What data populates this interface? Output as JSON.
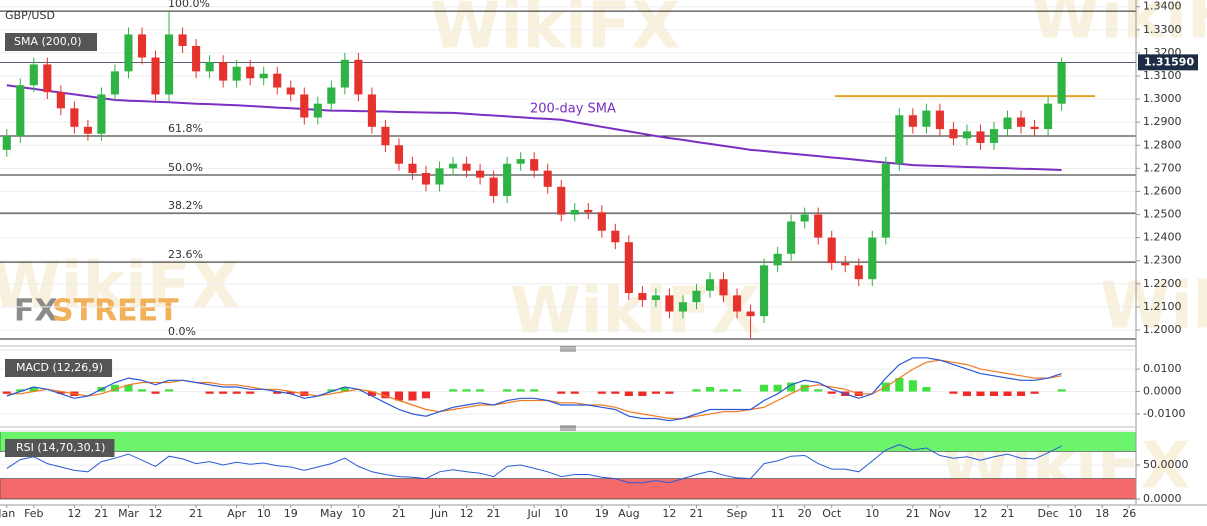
{
  "chart_data": [
    {
      "type": "candlestick",
      "title": "GBP/USD",
      "watermark": "WikiFX",
      "logo": [
        "FX",
        "STREET"
      ],
      "categories": [
        "Jan",
        null,
        "Feb",
        null,
        null,
        "12",
        null,
        "21",
        null,
        "Mar",
        null,
        "12",
        null,
        null,
        "21",
        null,
        null,
        "Apr",
        null,
        "10",
        null,
        "19",
        null,
        null,
        "May",
        null,
        "10",
        null,
        null,
        "21",
        null,
        null,
        "Jun",
        null,
        "12",
        null,
        "21",
        null,
        null,
        "Jul",
        null,
        "10",
        null,
        null,
        "19",
        null,
        "Aug",
        null,
        null,
        "12",
        null,
        "21",
        null,
        null,
        "Sep",
        null,
        null,
        "11",
        null,
        "20",
        null,
        "Oct",
        null,
        null,
        "10",
        null,
        null,
        "21",
        null,
        "Nov",
        null,
        null,
        "12",
        null,
        "21",
        null,
        null,
        "Dec",
        null,
        "10",
        null,
        "18",
        null,
        "26"
      ],
      "open": [
        1.278,
        1.284,
        1.306,
        1.315,
        1.303,
        1.296,
        1.288,
        1.285,
        1.302,
        1.312,
        1.328,
        1.318,
        1.302,
        1.328,
        1.323,
        1.312,
        1.316,
        1.308,
        1.314,
        1.309,
        1.311,
        1.305,
        1.302,
        1.292,
        1.298,
        1.305,
        1.317,
        1.302,
        1.288,
        1.28,
        1.272,
        1.268,
        1.263,
        1.27,
        1.272,
        1.269,
        1.266,
        1.258,
        1.272,
        1.274,
        1.269,
        1.262,
        1.25,
        1.252,
        1.251,
        1.243,
        1.238,
        1.216,
        1.213,
        1.215,
        1.208,
        1.212,
        1.217,
        1.222,
        1.215,
        1.208,
        1.206,
        1.228,
        1.233,
        1.247,
        1.25,
        1.24,
        1.229,
        1.228,
        1.222,
        1.24,
        1.272,
        1.293,
        1.288,
        1.295,
        1.287,
        1.283,
        1.286,
        1.281,
        1.287,
        1.292,
        1.288,
        1.287,
        1.298,
        null,
        null,
        null,
        null,
        null
      ],
      "high": [
        1.287,
        1.309,
        1.318,
        1.318,
        1.306,
        1.299,
        1.291,
        1.305,
        1.315,
        1.331,
        1.331,
        1.321,
        1.3381,
        1.331,
        1.326,
        1.319,
        1.319,
        1.317,
        1.317,
        1.314,
        1.314,
        1.308,
        1.305,
        1.301,
        1.308,
        1.32,
        1.32,
        1.305,
        1.291,
        1.283,
        1.275,
        1.271,
        1.273,
        1.275,
        1.275,
        1.272,
        1.269,
        1.275,
        1.277,
        1.277,
        1.272,
        1.265,
        1.255,
        1.255,
        1.254,
        1.246,
        1.241,
        1.219,
        1.218,
        1.218,
        1.215,
        1.22,
        1.225,
        1.225,
        1.218,
        1.211,
        1.231,
        1.236,
        1.25,
        1.253,
        1.253,
        1.243,
        1.232,
        1.231,
        1.243,
        1.275,
        1.296,
        1.296,
        1.298,
        1.298,
        1.29,
        1.289,
        1.289,
        1.29,
        1.295,
        1.295,
        1.291,
        1.301,
        1.318,
        null,
        null,
        null,
        null,
        null
      ],
      "low": [
        1.275,
        1.281,
        1.303,
        1.3,
        1.293,
        1.285,
        1.282,
        1.282,
        1.299,
        1.309,
        1.315,
        1.299,
        1.299,
        1.32,
        1.309,
        1.309,
        1.305,
        1.305,
        1.306,
        1.306,
        1.302,
        1.299,
        1.289,
        1.289,
        1.295,
        1.302,
        1.299,
        1.285,
        1.277,
        1.269,
        1.265,
        1.26,
        1.26,
        1.267,
        1.266,
        1.263,
        1.255,
        1.255,
        1.269,
        1.266,
        1.259,
        1.247,
        1.247,
        1.248,
        1.24,
        1.235,
        1.213,
        1.21,
        1.21,
        1.205,
        1.205,
        1.209,
        1.214,
        1.212,
        1.205,
        1.1961,
        1.203,
        1.225,
        1.23,
        1.244,
        1.237,
        1.226,
        1.225,
        1.219,
        1.219,
        1.237,
        1.269,
        1.285,
        1.285,
        1.284,
        1.28,
        1.28,
        1.278,
        1.278,
        1.284,
        1.285,
        1.284,
        1.284,
        1.295,
        null,
        null,
        null,
        null,
        null
      ],
      "close": [
        1.284,
        1.306,
        1.315,
        1.303,
        1.296,
        1.288,
        1.285,
        1.302,
        1.312,
        1.328,
        1.318,
        1.302,
        1.328,
        1.323,
        1.312,
        1.316,
        1.308,
        1.314,
        1.309,
        1.311,
        1.305,
        1.302,
        1.292,
        1.298,
        1.305,
        1.317,
        1.302,
        1.288,
        1.28,
        1.272,
        1.268,
        1.263,
        1.27,
        1.272,
        1.269,
        1.266,
        1.258,
        1.272,
        1.274,
        1.269,
        1.262,
        1.25,
        1.252,
        1.251,
        1.243,
        1.238,
        1.216,
        1.213,
        1.215,
        1.208,
        1.212,
        1.217,
        1.222,
        1.215,
        1.208,
        1.206,
        1.228,
        1.233,
        1.247,
        1.25,
        1.24,
        1.229,
        1.228,
        1.222,
        1.24,
        1.272,
        1.293,
        1.288,
        1.295,
        1.287,
        1.283,
        1.286,
        1.281,
        1.287,
        1.292,
        1.288,
        1.287,
        1.298,
        1.3159,
        null,
        null,
        null,
        null,
        null
      ],
      "up_color": "#2fb344",
      "down_color": "#e5322d",
      "overlays": [
        {
          "name": "SMA (200,0)",
          "label": "200-day SMA",
          "color": "#7a2fc4",
          "values": [
            1.306,
            1.3052,
            1.3044,
            1.3036,
            1.3028,
            1.302,
            1.3012,
            1.3004,
            1.2996,
            1.2993,
            1.2991,
            1.2988,
            1.2986,
            1.2983,
            1.298,
            1.2978,
            1.2975,
            1.2973,
            1.297,
            1.2967,
            1.2963,
            1.296,
            1.2957,
            1.2953,
            1.295,
            1.2949,
            1.2948,
            1.2947,
            1.2946,
            1.2944,
            1.2943,
            1.2942,
            1.2941,
            1.294,
            1.2936,
            1.2932,
            1.2929,
            1.2925,
            1.2921,
            1.2917,
            1.2914,
            1.291,
            1.29,
            1.289,
            1.288,
            1.287,
            1.286,
            1.285,
            1.284,
            1.2831,
            1.2823,
            1.2814,
            1.2806,
            1.2797,
            1.2789,
            1.278,
            1.2775,
            1.2769,
            1.2764,
            1.2758,
            1.2753,
            1.2747,
            1.2742,
            1.2736,
            1.273,
            1.2725,
            1.272,
            1.2714,
            1.2712,
            1.271,
            1.2708,
            1.2706,
            1.2704,
            1.2702,
            1.27,
            1.2698,
            1.2697,
            1.2695,
            1.2693,
            null,
            null,
            null,
            null,
            null
          ]
        }
      ],
      "fib_levels": [
        {
          "label": "100.0%",
          "value": 1.3381
        },
        {
          "label": "61.8%",
          "value": 1.284
        },
        {
          "label": "50.0%",
          "value": 1.2671
        },
        {
          "label": "38.2%",
          "value": 1.2506
        },
        {
          "label": "23.6%",
          "value": 1.2294
        },
        {
          "label": "0.0%",
          "value": 1.1961
        }
      ],
      "resistance": {
        "value": 1.3013,
        "color": "#e6a228"
      },
      "last_price": {
        "value": 1.3159,
        "label": "1.31590",
        "color": "#1d2b44"
      },
      "ylim": [
        1.1935,
        1.3429
      ],
      "yticks": [
        {
          "value": 1.2,
          "label": "1.2000"
        },
        {
          "value": 1.21,
          "label": "1.2100"
        },
        {
          "value": 1.22,
          "label": "1.2200"
        },
        {
          "value": 1.23,
          "label": "1.2300"
        },
        {
          "value": 1.24,
          "label": "1.2400"
        },
        {
          "value": 1.25,
          "label": "1.2500"
        },
        {
          "value": 1.26,
          "label": "1.2600"
        },
        {
          "value": 1.27,
          "label": "1.2700"
        },
        {
          "value": 1.28,
          "label": "1.2800"
        },
        {
          "value": 1.29,
          "label": "1.2900"
        },
        {
          "value": 1.3,
          "label": "1.3000"
        },
        {
          "value": 1.31,
          "label": "1.3100"
        },
        {
          "value": 1.32,
          "label": "1.3200"
        },
        {
          "value": 1.33,
          "label": "1.3300"
        },
        {
          "value": 1.34,
          "label": "1.3400"
        }
      ],
      "grid": true
    },
    {
      "type": "macd",
      "title": "MACD (12,26,9)",
      "macd": {
        "color": "#2b59d6",
        "values": [
          -0.002,
          0.0,
          0.002,
          0.001,
          -0.001,
          -0.003,
          -0.002,
          0.001,
          0.004,
          0.006,
          0.005,
          0.003,
          0.005,
          0.005,
          0.004,
          0.003,
          0.002,
          0.002,
          0.001,
          0.001,
          0.0,
          -0.001,
          -0.003,
          -0.002,
          0.0,
          0.002,
          0.001,
          -0.002,
          -0.005,
          -0.008,
          -0.01,
          -0.011,
          -0.009,
          -0.007,
          -0.006,
          -0.005,
          -0.006,
          -0.004,
          -0.003,
          -0.003,
          -0.004,
          -0.006,
          -0.006,
          -0.006,
          -0.007,
          -0.008,
          -0.011,
          -0.012,
          -0.012,
          -0.013,
          -0.012,
          -0.01,
          -0.008,
          -0.008,
          -0.008,
          -0.008,
          -0.004,
          -0.001,
          0.003,
          0.005,
          0.004,
          0.001,
          -0.001,
          -0.003,
          -0.001,
          0.006,
          0.012,
          0.015,
          0.015,
          0.014,
          0.012,
          0.01,
          0.008,
          0.007,
          0.006,
          0.005,
          0.005,
          0.006,
          0.008,
          null,
          null,
          null,
          null,
          null
        ]
      },
      "signal": {
        "color": "#ef7a22",
        "values": [
          -0.001,
          -0.001,
          0.0,
          0.001,
          0.0,
          -0.001,
          -0.002,
          -0.001,
          0.001,
          0.003,
          0.004,
          0.004,
          0.004,
          0.005,
          0.004,
          0.004,
          0.003,
          0.003,
          0.002,
          0.001,
          0.001,
          0.0,
          -0.001,
          -0.002,
          -0.001,
          0.0,
          0.001,
          0.0,
          -0.002,
          -0.004,
          -0.006,
          -0.008,
          -0.009,
          -0.008,
          -0.007,
          -0.006,
          -0.006,
          -0.005,
          -0.004,
          -0.004,
          -0.004,
          -0.005,
          -0.005,
          -0.006,
          -0.006,
          -0.007,
          -0.009,
          -0.01,
          -0.011,
          -0.012,
          -0.012,
          -0.011,
          -0.01,
          -0.009,
          -0.009,
          -0.008,
          -0.007,
          -0.004,
          -0.001,
          0.002,
          0.003,
          0.002,
          0.001,
          -0.001,
          -0.001,
          0.002,
          0.006,
          0.01,
          0.013,
          0.014,
          0.013,
          0.012,
          0.01,
          0.009,
          0.008,
          0.007,
          0.006,
          0.006,
          0.007,
          null,
          null,
          null,
          null,
          null
        ]
      },
      "histogram": {
        "up_color": "#3fe03f",
        "down_color": "#ee2a2a",
        "values": [
          -0.001,
          0.001,
          0.002,
          0.0,
          -0.001,
          -0.002,
          0.0,
          0.002,
          0.003,
          0.003,
          0.001,
          -0.001,
          0.001,
          0.0,
          0.0,
          -0.001,
          -0.001,
          -0.001,
          -0.001,
          0.0,
          -0.001,
          -0.001,
          -0.002,
          0.0,
          0.001,
          0.002,
          0.0,
          -0.002,
          -0.003,
          -0.004,
          -0.004,
          -0.003,
          0.0,
          0.001,
          0.001,
          0.001,
          0.0,
          0.001,
          0.001,
          0.001,
          0.0,
          -0.001,
          -0.001,
          0.0,
          -0.001,
          -0.001,
          -0.002,
          -0.002,
          -0.001,
          -0.001,
          0.0,
          0.001,
          0.002,
          0.001,
          0.001,
          0.0,
          0.003,
          0.003,
          0.004,
          0.003,
          0.001,
          -0.001,
          -0.002,
          -0.002,
          0.0,
          0.004,
          0.006,
          0.005,
          0.002,
          0.0,
          -0.001,
          -0.002,
          -0.002,
          -0.002,
          -0.002,
          -0.002,
          -0.001,
          0.0,
          0.001,
          null,
          null,
          null,
          null,
          null
        ]
      },
      "ylim": [
        -0.0149,
        0.0176
      ],
      "yticks": [
        {
          "value": -0.01,
          "label": "-0.0100"
        },
        {
          "value": 0,
          "label": "0.0000"
        },
        {
          "value": 0.01,
          "label": "0.0100"
        }
      ],
      "grid": true
    },
    {
      "type": "rsi",
      "title": "RSI (14,70,30,1)",
      "color": "#2a5bd7",
      "values": [
        45,
        58,
        62,
        52,
        47,
        42,
        40,
        55,
        60,
        66,
        57,
        48,
        63,
        59,
        52,
        55,
        50,
        54,
        51,
        53,
        49,
        47,
        42,
        47,
        52,
        60,
        48,
        40,
        36,
        33,
        32,
        30,
        40,
        43,
        40,
        38,
        33,
        48,
        50,
        45,
        40,
        33,
        36,
        36,
        32,
        30,
        24,
        24,
        27,
        24,
        30,
        36,
        41,
        35,
        31,
        30,
        52,
        56,
        63,
        64,
        52,
        44,
        44,
        40,
        56,
        72,
        80,
        72,
        75,
        64,
        60,
        62,
        57,
        62,
        66,
        60,
        59,
        68,
        78,
        null,
        null,
        null,
        null,
        null
      ],
      "bands": [
        {
          "from": 70,
          "to": 100,
          "color": "#6cf46c"
        },
        {
          "from": 0,
          "to": 30,
          "color": "#f46a6a"
        }
      ],
      "ylim": [
        -8.8,
        98.5
      ],
      "yticks": [
        {
          "value": 0,
          "label": "0.0000"
        },
        {
          "value": 50,
          "label": "50.0000"
        }
      ],
      "grid": true
    }
  ]
}
